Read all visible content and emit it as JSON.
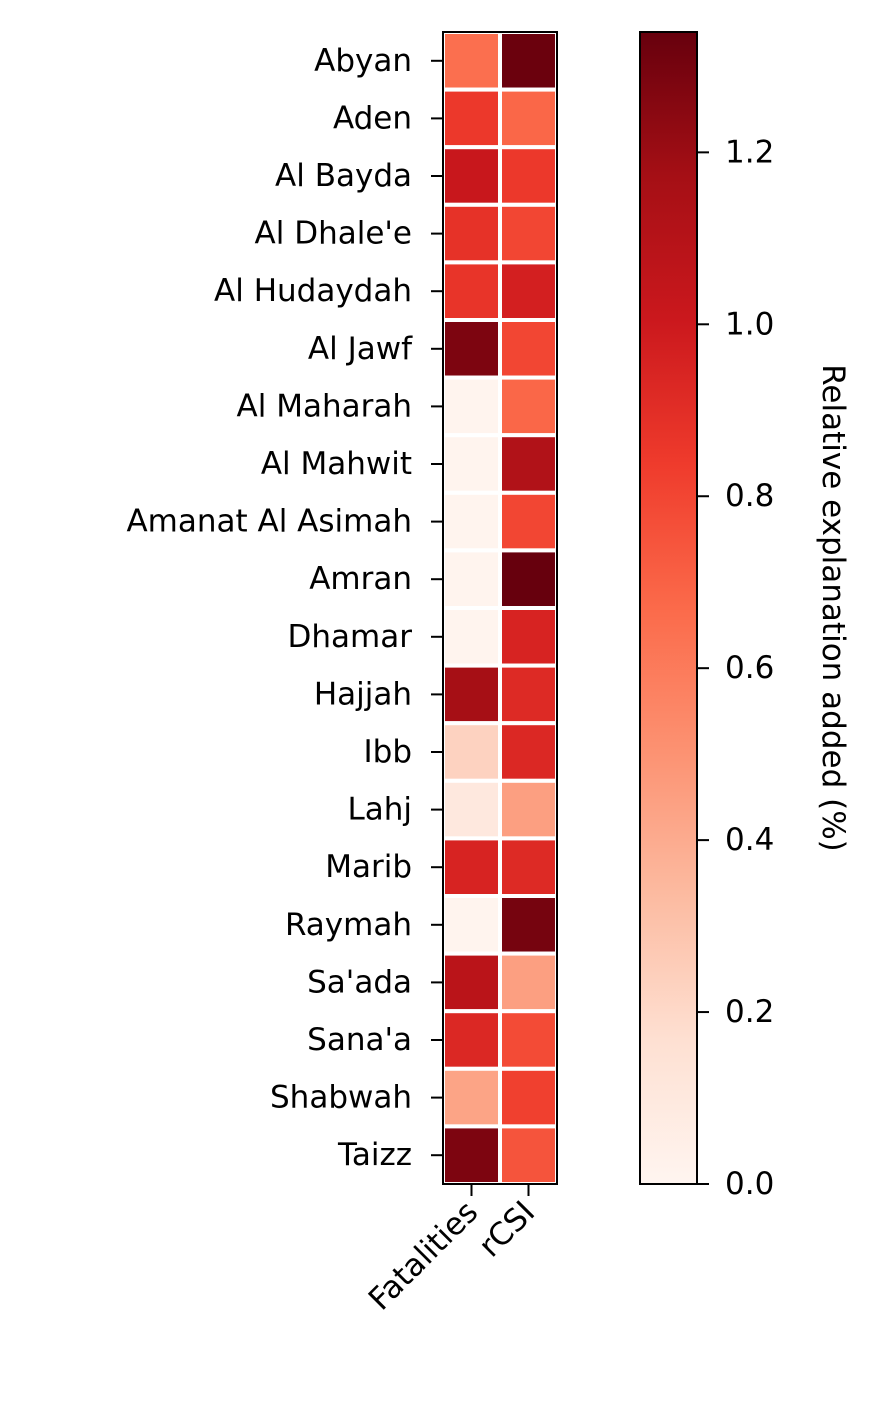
{
  "chart_data": {
    "type": "heatmap",
    "rows": [
      "Abyan",
      "Aden",
      "Al Bayda",
      "Al Dhale'e",
      "Al Hudaydah",
      "Al Jawf",
      "Al Maharah",
      "Al Mahwit",
      "Amanat Al Asimah",
      "Amran",
      "Dhamar",
      "Hajjah",
      "Ibb",
      "Lahj",
      "Marib",
      "Raymah",
      "Sa'ada",
      "Sana'a",
      "Shabwah",
      "Taizz"
    ],
    "columns": [
      "Fatalities",
      "rCSI"
    ],
    "values": [
      [
        0.65,
        1.33
      ],
      [
        0.85,
        0.68
      ],
      [
        1.02,
        0.85
      ],
      [
        0.88,
        0.8
      ],
      [
        0.87,
        0.97
      ],
      [
        1.28,
        0.8
      ],
      [
        0.01,
        0.68
      ],
      [
        0.01,
        1.12
      ],
      [
        0.01,
        0.8
      ],
      [
        0.01,
        1.35
      ],
      [
        0.01,
        0.95
      ],
      [
        1.17,
        0.92
      ],
      [
        0.23,
        0.93
      ],
      [
        0.1,
        0.45
      ],
      [
        0.95,
        0.92
      ],
      [
        0.01,
        1.3
      ],
      [
        1.08,
        0.45
      ],
      [
        0.93,
        0.78
      ],
      [
        0.43,
        0.82
      ],
      [
        1.28,
        0.75
      ]
    ],
    "colorbar": {
      "label": "Relative explanation added (%)",
      "range": [
        0,
        1.34
      ],
      "ticks": [
        0.0,
        0.2,
        0.4,
        0.6,
        0.8,
        1.0,
        1.2
      ],
      "tick_labels": [
        "0.0",
        "0.2",
        "0.4",
        "0.6",
        "0.8",
        "1.0",
        "1.2"
      ],
      "colormap": "Reds"
    },
    "grid": false
  }
}
